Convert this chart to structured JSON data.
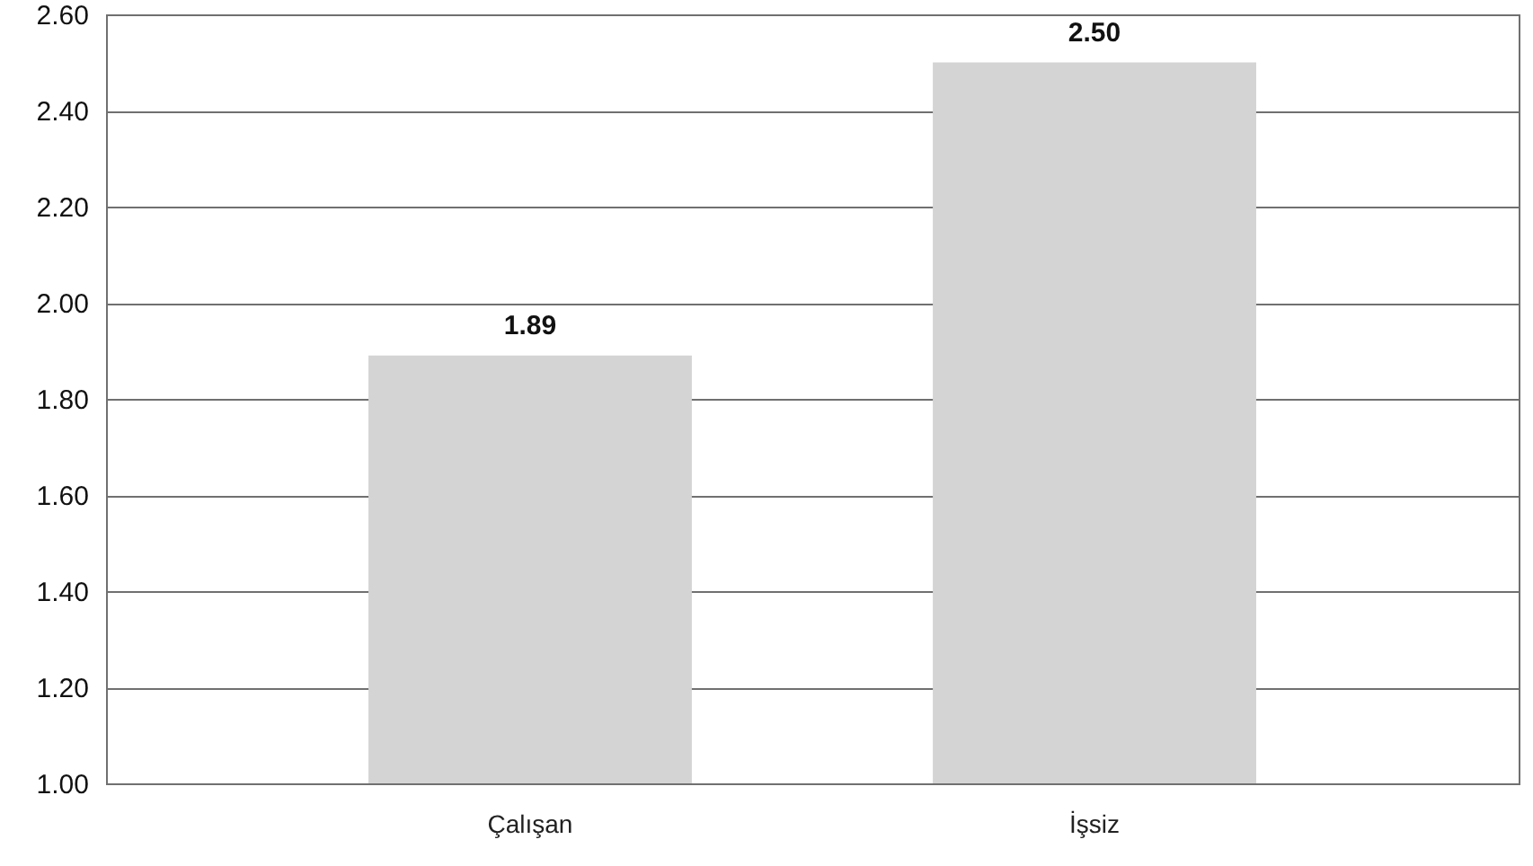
{
  "chart_data": {
    "type": "bar",
    "categories": [
      "Çalışan",
      "İşsiz"
    ],
    "values": [
      1.89,
      2.5
    ],
    "value_labels": [
      "1.89",
      "2.50"
    ],
    "color": "#d4d4d4",
    "ylim": [
      1,
      2.6
    ],
    "yticks": [
      {
        "value": 1,
        "label": "1.00"
      },
      {
        "value": 1.2,
        "label": "1.20"
      },
      {
        "value": 1.4,
        "label": "1.40"
      },
      {
        "value": 1.6,
        "label": "1.60"
      },
      {
        "value": 1.8,
        "label": "1.80"
      },
      {
        "value": 2,
        "label": "2.00"
      },
      {
        "value": 2.2,
        "label": "2.20"
      },
      {
        "value": 2.4,
        "label": "2.40"
      },
      {
        "value": 2.6,
        "label": "2.60"
      }
    ],
    "grid": "y"
  }
}
